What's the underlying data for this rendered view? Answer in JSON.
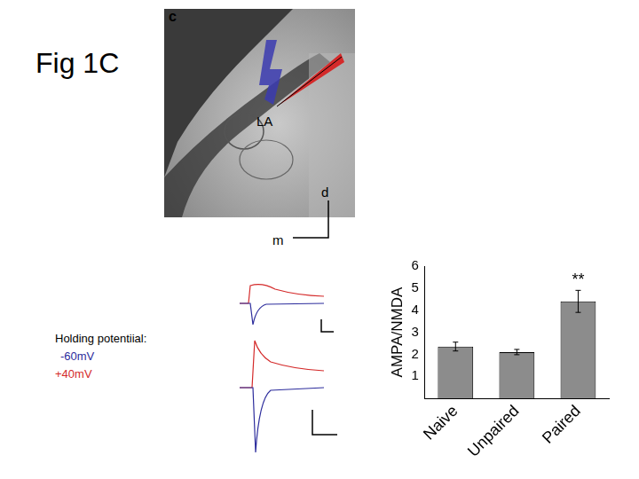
{
  "slide_title": "Fig 1C",
  "panel_label": "c",
  "image": {
    "region_label": "LA",
    "axis_labels": {
      "vertical": "d",
      "horizontal": "m"
    }
  },
  "traces": {
    "legend_title": "Holding potentiial:",
    "entries": [
      {
        "label": "-60mV",
        "color": "#2c2c9c"
      },
      {
        "label": "+40mV",
        "color": "#d42a2a"
      }
    ]
  },
  "chart_data": {
    "type": "bar",
    "y_label": "AMPA/NMDA",
    "categories": [
      "Naive",
      "Unpaired",
      "Paired"
    ],
    "values": [
      2.35,
      2.1,
      4.4
    ],
    "errors": [
      0.2,
      0.12,
      0.5
    ],
    "color": "#8c8c8c",
    "ylim": [
      0,
      6
    ],
    "yticks": [
      1,
      2,
      3,
      4,
      5,
      6
    ],
    "grid": false,
    "annotations": [
      {
        "text": "**",
        "category": "Paired"
      }
    ]
  }
}
